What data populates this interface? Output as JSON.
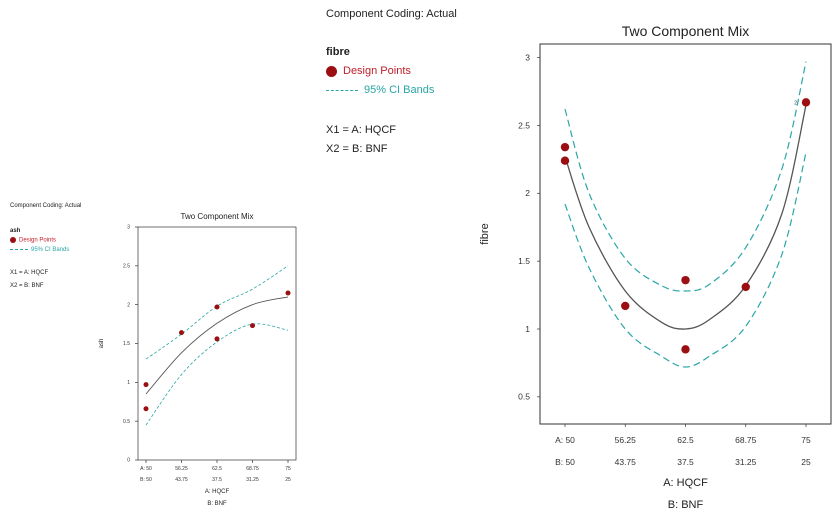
{
  "small_panel": {
    "coding": "Component Coding: Actual",
    "response": "ash",
    "legend_points": "Design Points",
    "legend_ci": "95% CI Bands",
    "x1": "X1 = A: HQCF",
    "x2": "X2 = B: BNF"
  },
  "large_panel": {
    "coding": "Component Coding: Actual",
    "response": "fibre",
    "legend_points": "Design Points",
    "legend_ci": "95% CI Bands",
    "x1": "X1 = A: HQCF",
    "x2": "X2 = B: BNF"
  },
  "colors": {
    "points": "#9b0f12",
    "fit": "#555555",
    "ci": "#2aa6a6"
  },
  "chart_data": [
    {
      "type": "line",
      "title": "Two Component Mix",
      "ylabel": "ash",
      "xlabel": "A: HQCF",
      "xlabel2": "B: BNF",
      "xlim": [
        50,
        75
      ],
      "ylim": [
        0,
        3
      ],
      "a_ticks": [
        "A: 50",
        "56.25",
        "62.5",
        "68.75",
        "75"
      ],
      "b_ticks": [
        "B: 50",
        "43.75",
        "37.5",
        "31.25",
        "25"
      ],
      "y_ticks": [
        "0",
        "0.5",
        "1",
        "1.5",
        "2",
        "2.5",
        "3"
      ],
      "design_points": [
        {
          "x": 50,
          "y": 0.97
        },
        {
          "x": 50,
          "y": 0.66
        },
        {
          "x": 56.25,
          "y": 1.64
        },
        {
          "x": 62.5,
          "y": 1.97
        },
        {
          "x": 62.5,
          "y": 1.56
        },
        {
          "x": 68.75,
          "y": 1.73
        },
        {
          "x": 75,
          "y": 2.15
        }
      ],
      "fit": {
        "x": [
          50,
          56.25,
          62.5,
          68.75,
          75
        ],
        "y": [
          0.85,
          1.38,
          1.76,
          2.0,
          2.1
        ]
      },
      "ci_upper": {
        "x": [
          50,
          56.25,
          62.5,
          68.75,
          75
        ],
        "y": [
          1.3,
          1.62,
          1.98,
          2.2,
          2.5
        ]
      },
      "ci_lower": {
        "x": [
          50,
          56.25,
          62.5,
          68.75,
          75
        ],
        "y": [
          0.45,
          1.1,
          1.52,
          1.75,
          1.67
        ]
      }
    },
    {
      "type": "line",
      "title": "Two Component Mix",
      "ylabel": "fibre",
      "xlabel": "A: HQCF",
      "xlabel2": "B: BNF",
      "xlim": [
        50,
        75
      ],
      "ylim": [
        0.3,
        3.1
      ],
      "a_ticks": [
        "A: 50",
        "56.25",
        "62.5",
        "68.75",
        "75"
      ],
      "b_ticks": [
        "B: 50",
        "43.75",
        "37.5",
        "31.25",
        "25"
      ],
      "y_ticks": [
        "0.5",
        "1",
        "1.5",
        "2",
        "2.5",
        "3"
      ],
      "design_points": [
        {
          "x": 50,
          "y": 2.34
        },
        {
          "x": 50,
          "y": 2.24
        },
        {
          "x": 56.25,
          "y": 1.17
        },
        {
          "x": 62.5,
          "y": 1.36
        },
        {
          "x": 62.5,
          "y": 0.85
        },
        {
          "x": 68.75,
          "y": 1.31
        },
        {
          "x": 75,
          "y": 2.67
        }
      ],
      "point_label": {
        "x": 75,
        "y": 2.67,
        "text": "2"
      },
      "fit": {
        "x": [
          50,
          52.5,
          56.25,
          60,
          62.5,
          65,
          68.75,
          72.5,
          75
        ],
        "y": [
          2.27,
          1.75,
          1.28,
          1.05,
          1.0,
          1.07,
          1.32,
          1.85,
          2.65
        ]
      },
      "ci_upper": {
        "x": [
          50,
          52.5,
          56.25,
          60,
          62.5,
          65,
          68.75,
          72.5,
          75
        ],
        "y": [
          2.62,
          2.0,
          1.52,
          1.32,
          1.28,
          1.33,
          1.6,
          2.18,
          2.97
        ]
      },
      "ci_lower": {
        "x": [
          50,
          52.5,
          56.25,
          60,
          62.5,
          65,
          68.75,
          72.5,
          75
        ],
        "y": [
          1.92,
          1.45,
          1.0,
          0.8,
          0.72,
          0.8,
          1.02,
          1.55,
          2.3
        ]
      }
    }
  ]
}
